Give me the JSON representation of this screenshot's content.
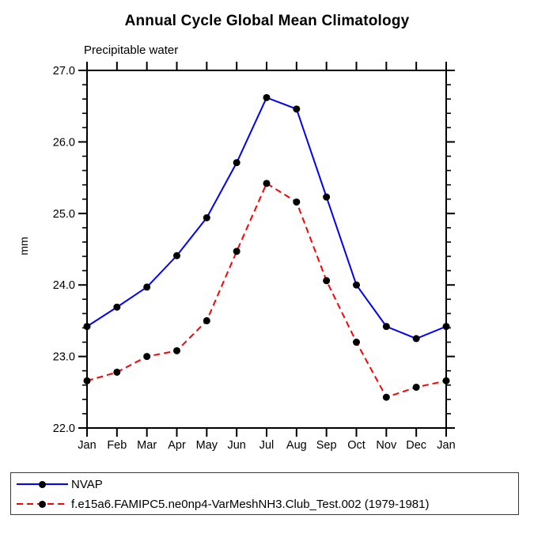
{
  "title": "Annual Cycle Global Mean Climatology",
  "subtitle": "Precipitable water",
  "ylabel": "mm",
  "colors": {
    "axis": "#000000",
    "marker": "#000000",
    "nvap": "#0000ff",
    "model": "#ff0000"
  },
  "legend": {
    "entries": [
      {
        "label": "NVAP"
      },
      {
        "label": "f.e15a6.FAMIPC5.ne0np4-VarMeshNH3.Club_Test.002 (1979-1981)"
      }
    ]
  },
  "chart_data": {
    "type": "line",
    "title": "Annual Cycle Global Mean Climatology",
    "subtitle": "Precipitable water",
    "xlabel": "",
    "ylabel": "mm",
    "ylim": [
      22.0,
      27.0
    ],
    "y_major_step": 1.0,
    "y_minor_step": 0.2,
    "y_tick_labels": [
      "22.0",
      "23.0",
      "24.0",
      "25.0",
      "26.0",
      "27.0"
    ],
    "categories": [
      "Jan",
      "Feb",
      "Mar",
      "Apr",
      "May",
      "Jun",
      "Jul",
      "Aug",
      "Sep",
      "Oct",
      "Nov",
      "Dec",
      "Jan"
    ],
    "grid": false,
    "legend_position": "bottom-left-box",
    "tick_style": "outward-all-sides",
    "series": [
      {
        "name": "NVAP",
        "color": "#0000ff",
        "line_style": "solid",
        "marker": "filled-circle",
        "marker_color": "#000000",
        "values": [
          23.42,
          23.69,
          23.97,
          24.41,
          24.94,
          25.71,
          26.62,
          26.46,
          25.23,
          24.0,
          23.42,
          23.25,
          23.42
        ]
      },
      {
        "name": "f.e15a6.FAMIPC5.ne0np4-VarMeshNH3.Club_Test.002 (1979-1981)",
        "color": "#ff0000",
        "line_style": "dashed",
        "marker": "filled-circle",
        "marker_color": "#000000",
        "values": [
          22.66,
          22.78,
          23.0,
          23.08,
          23.5,
          24.47,
          25.42,
          25.16,
          24.06,
          23.2,
          22.43,
          22.57,
          22.66
        ]
      }
    ]
  }
}
